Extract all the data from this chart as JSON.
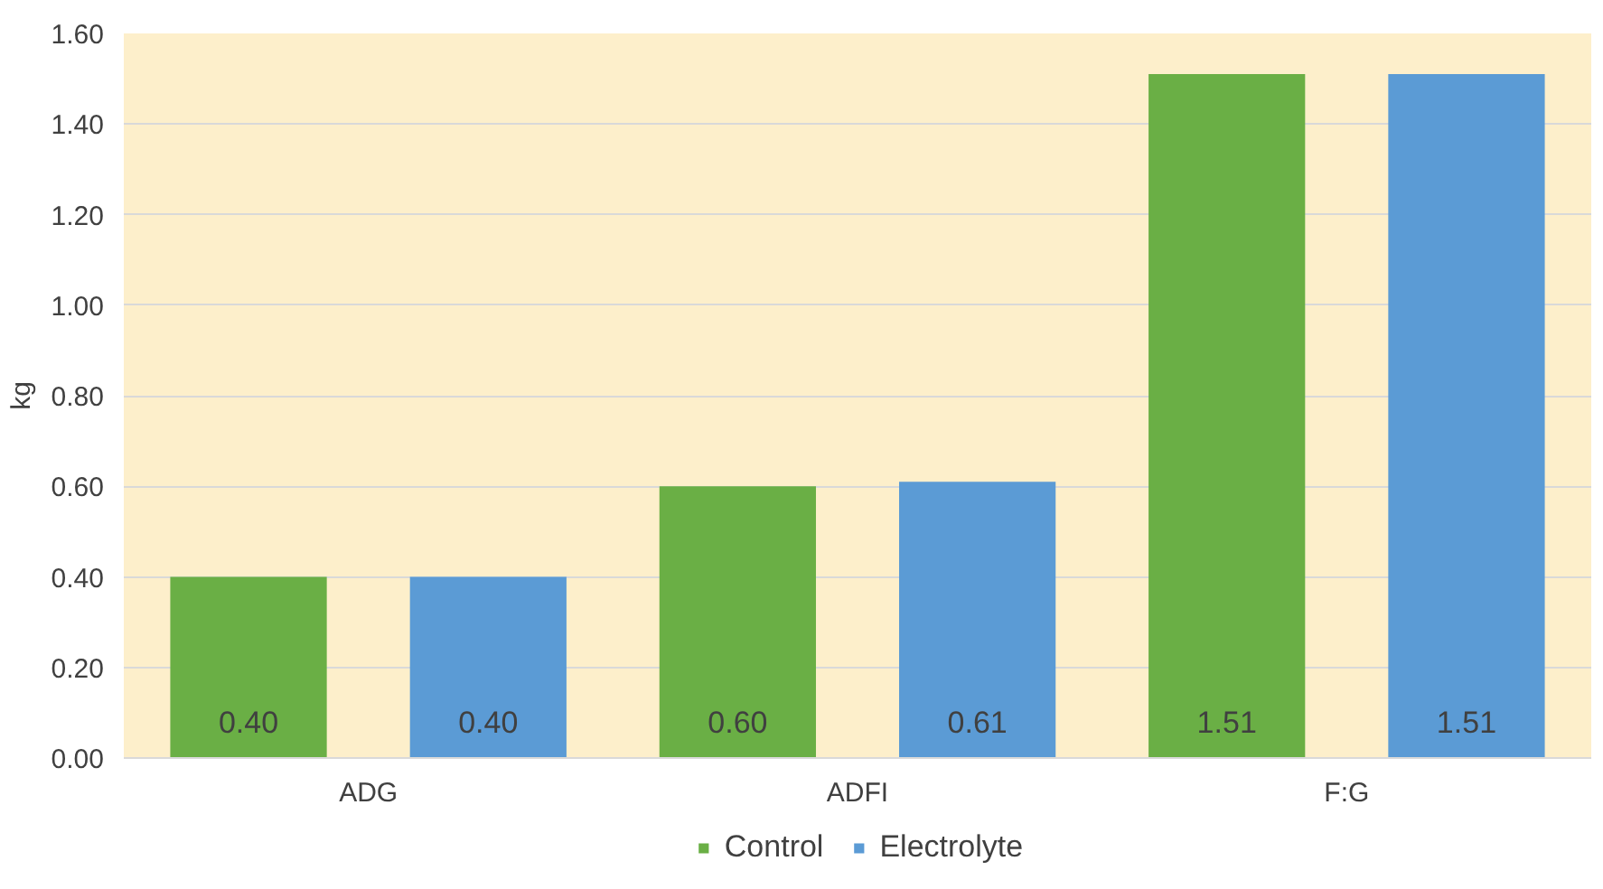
{
  "chart_data": {
    "type": "bar",
    "ylabel": "kg",
    "categories": [
      "ADG",
      "ADFI",
      "F:G"
    ],
    "series": [
      {
        "name": "Control",
        "color": "#6aaf45",
        "values": [
          0.4,
          0.6,
          1.51
        ],
        "value_labels": [
          "0.40",
          "0.60",
          "1.51"
        ]
      },
      {
        "name": "Electrolyte",
        "color": "#5b9bd5",
        "values": [
          0.4,
          0.61,
          1.51
        ],
        "value_labels": [
          "0.40",
          "0.61",
          "1.51"
        ]
      }
    ],
    "ylim": [
      0,
      1.6
    ],
    "yticks": [
      {
        "value": 0,
        "label": "0.00"
      },
      {
        "value": 0.2,
        "label": "0.20"
      },
      {
        "value": 0.4,
        "label": "0.40"
      },
      {
        "value": 0.6,
        "label": "0.60"
      },
      {
        "value": 0.8,
        "label": "0.80"
      },
      {
        "value": 1.0,
        "label": "1.00"
      },
      {
        "value": 1.2,
        "label": "1.20"
      },
      {
        "value": 1.4,
        "label": "1.40"
      },
      {
        "value": 1.6,
        "label": "1.60"
      }
    ],
    "grid": "y",
    "legend": "bottom"
  }
}
